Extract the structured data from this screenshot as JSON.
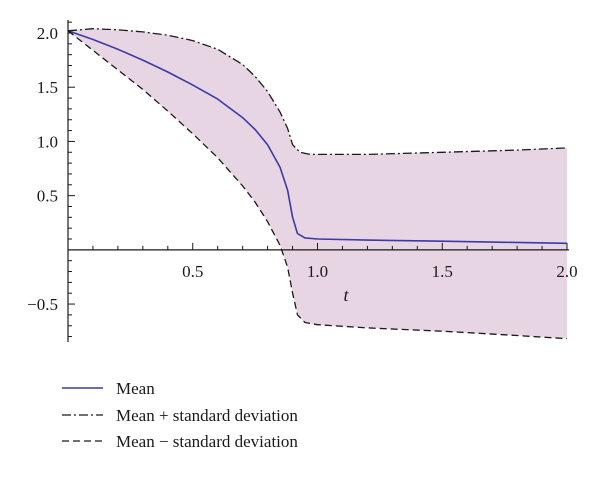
{
  "chart_data": {
    "type": "line",
    "xlabel": "t",
    "ylabel": "",
    "xlim": [
      0,
      2.0
    ],
    "ylim": [
      -0.85,
      2.12
    ],
    "x_ticks": [
      {
        "value": 0.5,
        "label": "0.5"
      },
      {
        "value": 1.0,
        "label": "1.0"
      },
      {
        "value": 1.5,
        "label": "1.5"
      },
      {
        "value": 2.0,
        "label": "2.0"
      }
    ],
    "y_ticks": [
      {
        "value": 2.0,
        "label": "2.0"
      },
      {
        "value": 1.5,
        "label": "1.5"
      },
      {
        "value": 1.0,
        "label": "1.0"
      },
      {
        "value": 0.5,
        "label": "0.5"
      },
      {
        "value": -0.5,
        "label": "−0.5"
      }
    ],
    "grid": false,
    "legend_position": "bottom-left",
    "band_color": "#e8d5e3",
    "series": [
      {
        "name": "Mean",
        "style": "solid",
        "color": "#3a3aa8",
        "points": [
          [
            0,
            2.02
          ],
          [
            0.1,
            1.94
          ],
          [
            0.2,
            1.85
          ],
          [
            0.3,
            1.75
          ],
          [
            0.4,
            1.64
          ],
          [
            0.5,
            1.52
          ],
          [
            0.6,
            1.39
          ],
          [
            0.7,
            1.22
          ],
          [
            0.75,
            1.11
          ],
          [
            0.8,
            0.97
          ],
          [
            0.85,
            0.76
          ],
          [
            0.88,
            0.55
          ],
          [
            0.9,
            0.3
          ],
          [
            0.92,
            0.15
          ],
          [
            0.95,
            0.11
          ],
          [
            1.0,
            0.1
          ],
          [
            1.2,
            0.09
          ],
          [
            1.5,
            0.08
          ],
          [
            1.75,
            0.07
          ],
          [
            2.0,
            0.06
          ]
        ]
      },
      {
        "name": "Mean + standard deviation",
        "style": "dashdot",
        "color": "#1a1a1a",
        "points": [
          [
            0,
            2.02
          ],
          [
            0.1,
            2.04
          ],
          [
            0.2,
            2.03
          ],
          [
            0.3,
            2.01
          ],
          [
            0.4,
            1.98
          ],
          [
            0.5,
            1.93
          ],
          [
            0.6,
            1.85
          ],
          [
            0.7,
            1.71
          ],
          [
            0.75,
            1.6
          ],
          [
            0.8,
            1.46
          ],
          [
            0.85,
            1.27
          ],
          [
            0.88,
            1.12
          ],
          [
            0.9,
            0.97
          ],
          [
            0.93,
            0.9
          ],
          [
            0.97,
            0.88
          ],
          [
            1.05,
            0.88
          ],
          [
            1.2,
            0.88
          ],
          [
            1.5,
            0.9
          ],
          [
            1.8,
            0.92
          ],
          [
            2.0,
            0.94
          ]
        ]
      },
      {
        "name": "Mean − standard deviation",
        "style": "dashed",
        "color": "#1a1a1a",
        "points": [
          [
            0,
            2.02
          ],
          [
            0.1,
            1.84
          ],
          [
            0.2,
            1.66
          ],
          [
            0.3,
            1.48
          ],
          [
            0.4,
            1.28
          ],
          [
            0.5,
            1.07
          ],
          [
            0.6,
            0.85
          ],
          [
            0.7,
            0.59
          ],
          [
            0.75,
            0.44
          ],
          [
            0.8,
            0.26
          ],
          [
            0.85,
            0.04
          ],
          [
            0.88,
            -0.16
          ],
          [
            0.9,
            -0.4
          ],
          [
            0.92,
            -0.6
          ],
          [
            0.95,
            -0.67
          ],
          [
            1.0,
            -0.69
          ],
          [
            1.2,
            -0.72
          ],
          [
            1.5,
            -0.75
          ],
          [
            1.8,
            -0.79
          ],
          [
            2.0,
            -0.82
          ]
        ]
      }
    ]
  }
}
